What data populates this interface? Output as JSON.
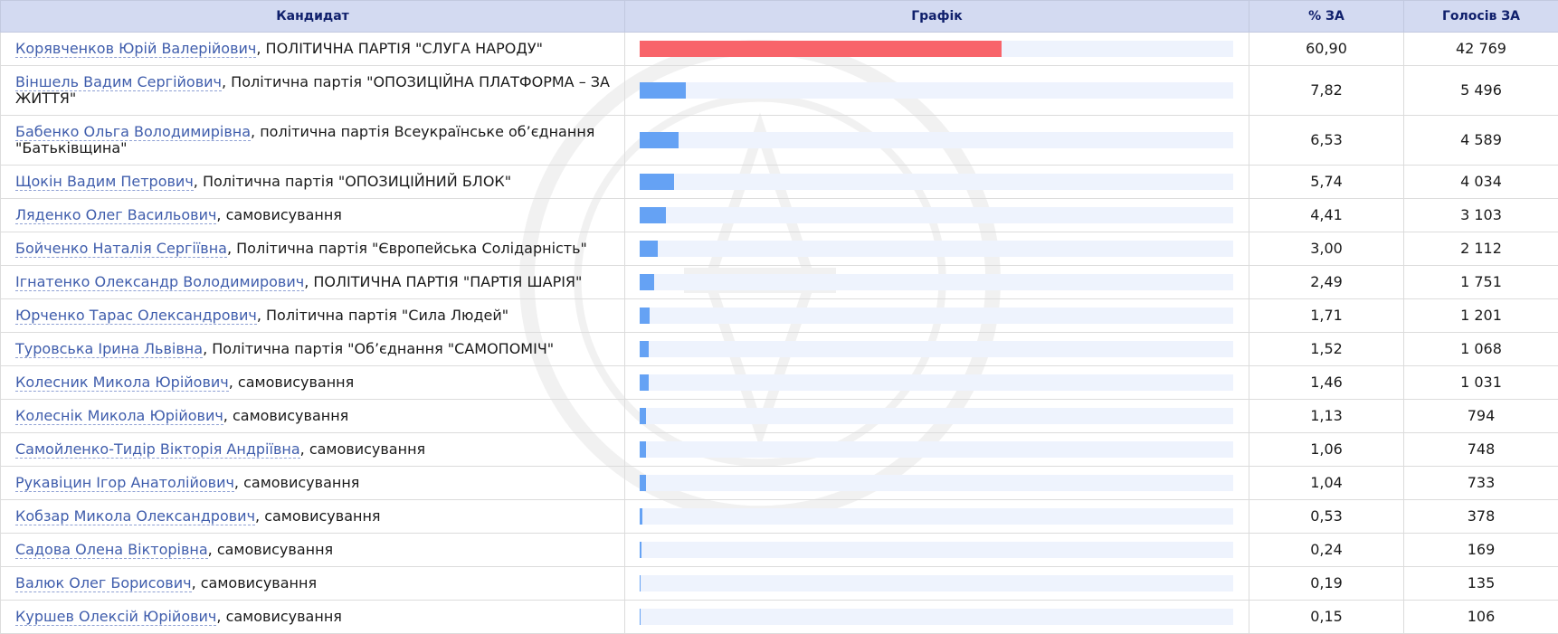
{
  "table": {
    "headers": {
      "candidate": "Кандидат",
      "graph": "Графік",
      "percent": "% ЗА",
      "votes": "Голосів ЗА"
    },
    "leader_color": "#f8646a",
    "bar_color": "#65a2f4",
    "rows": [
      {
        "name": "Корявченков Юрій Валерійович",
        "party": ", ПОЛІТИЧНА ПАРТІЯ \"СЛУГА НАРОДУ\"",
        "percent": "60,90",
        "percent_value": 60.9,
        "votes": "42 769"
      },
      {
        "name": "Віншель Вадим Сергійович",
        "party": ", Політична партія \"ОПОЗИЦІЙНА ПЛАТФОРМА – ЗА ЖИТТЯ\"",
        "percent": "7,82",
        "percent_value": 7.82,
        "votes": "5 496"
      },
      {
        "name": "Бабенко Ольга Володимирівна",
        "party": ", політична партія Всеукраїнське об’єднання \"Батьківщина\"",
        "percent": "6,53",
        "percent_value": 6.53,
        "votes": "4 589"
      },
      {
        "name": "Щокін Вадим Петрович",
        "party": ", Політична партія \"ОПОЗИЦІЙНИЙ БЛОК\"",
        "percent": "5,74",
        "percent_value": 5.74,
        "votes": "4 034"
      },
      {
        "name": "Ляденко Олег Васильович",
        "party": ", самовисування",
        "percent": "4,41",
        "percent_value": 4.41,
        "votes": "3 103"
      },
      {
        "name": "Бойченко Наталія Сергіївна",
        "party": ", Політична партія \"Європейська Солідарність\"",
        "percent": "3,00",
        "percent_value": 3.0,
        "votes": "2 112"
      },
      {
        "name": "Ігнатенко Олександр Володимирович",
        "party": ", ПОЛІТИЧНА ПАРТІЯ \"ПАРТІЯ ШАРІЯ\"",
        "percent": "2,49",
        "percent_value": 2.49,
        "votes": "1 751"
      },
      {
        "name": "Юрченко Тарас Олександрович",
        "party": ", Політична партія \"Сила Людей\"",
        "percent": "1,71",
        "percent_value": 1.71,
        "votes": "1 201"
      },
      {
        "name": "Туровська Ірина Львівна",
        "party": ", Політична партія \"Об’єднання \"САМОПОМІЧ\"",
        "percent": "1,52",
        "percent_value": 1.52,
        "votes": "1 068"
      },
      {
        "name": "Колесник Микола Юрійович",
        "party": ", самовисування",
        "percent": "1,46",
        "percent_value": 1.46,
        "votes": "1 031"
      },
      {
        "name": "Колеснік Микола Юрійович",
        "party": ", самовисування",
        "percent": "1,13",
        "percent_value": 1.13,
        "votes": "794"
      },
      {
        "name": "Самойленко-Тидір Вікторія Андріївна",
        "party": ", самовисування",
        "percent": "1,06",
        "percent_value": 1.06,
        "votes": "748"
      },
      {
        "name": "Рукавіцин Ігор Анатолійович",
        "party": ", самовисування",
        "percent": "1,04",
        "percent_value": 1.04,
        "votes": "733"
      },
      {
        "name": "Кобзар Микола Олександрович",
        "party": ", самовисування",
        "percent": "0,53",
        "percent_value": 0.53,
        "votes": "378"
      },
      {
        "name": "Садова Олена Вікторівна",
        "party": ", самовисування",
        "percent": "0,24",
        "percent_value": 0.24,
        "votes": "169"
      },
      {
        "name": "Валюк Олег Борисович",
        "party": ", самовисування",
        "percent": "0,19",
        "percent_value": 0.19,
        "votes": "135"
      },
      {
        "name": "Куршев Олексій Юрійович",
        "party": ", самовисування",
        "percent": "0,15",
        "percent_value": 0.15,
        "votes": "106"
      }
    ]
  }
}
